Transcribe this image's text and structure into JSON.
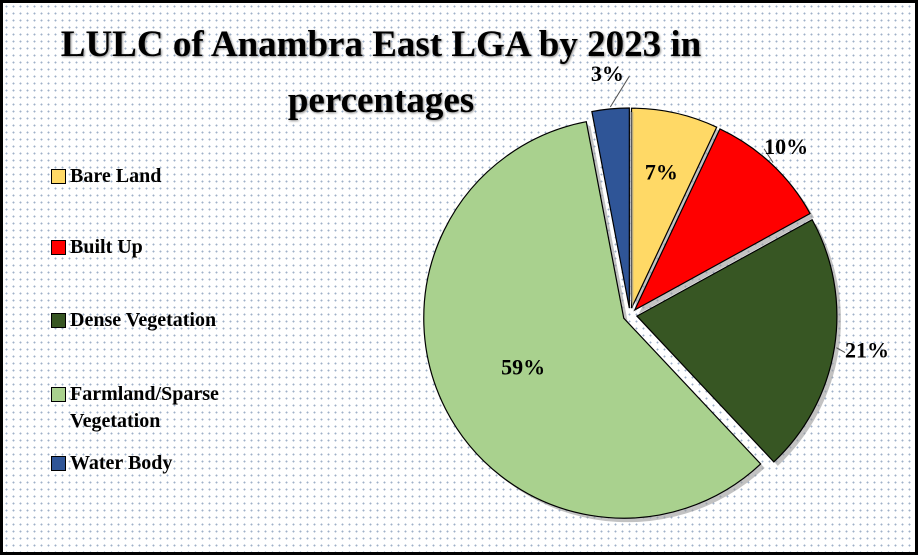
{
  "chart_data": {
    "type": "pie",
    "title": "LULC of Anambra East LGA by 2023 in percentages",
    "categories": [
      "Bare Land",
      "Built Up",
      "Dense Vegetation",
      "Farmland/Sparse Vegetation",
      "Water Body"
    ],
    "values": [
      7,
      10,
      21,
      59,
      3
    ],
    "value_labels": [
      "7%",
      "10%",
      "21%",
      "59%",
      "3%"
    ],
    "colors": [
      "#ffd966",
      "#ff0000",
      "#375623",
      "#a9d18e",
      "#2f5597"
    ],
    "legend": "left"
  }
}
